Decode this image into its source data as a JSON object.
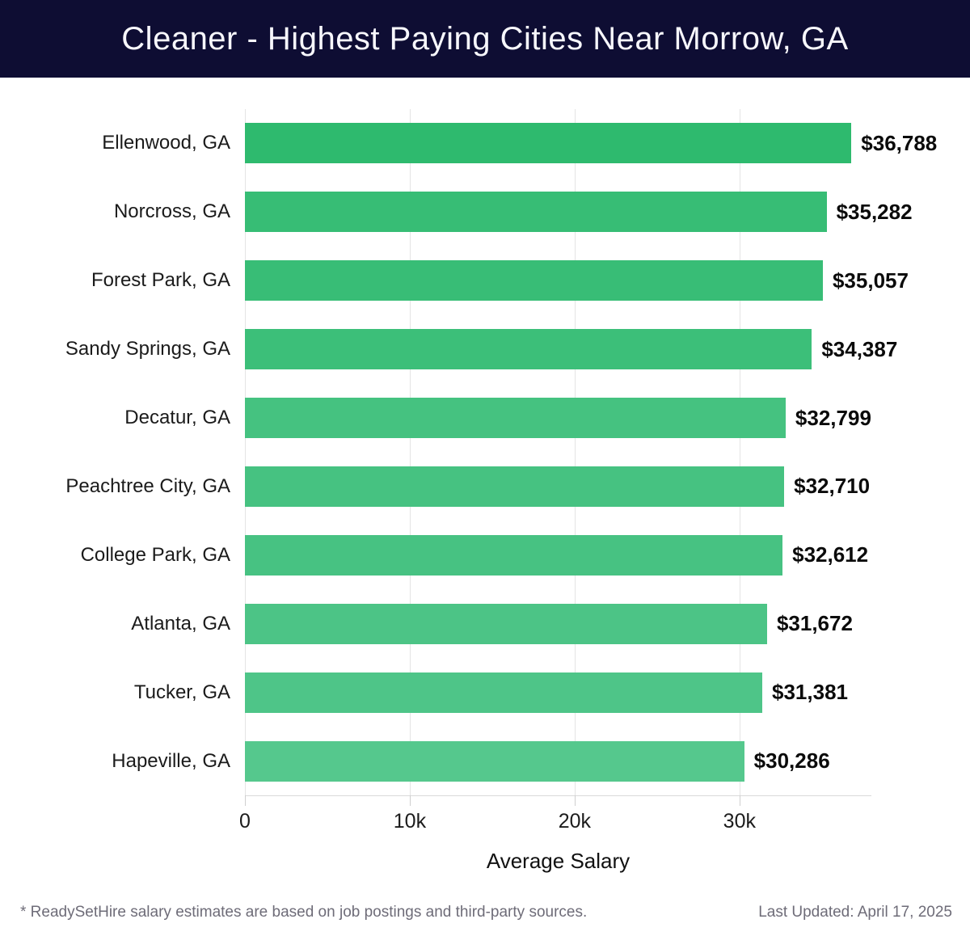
{
  "header": {
    "title": "Cleaner - Highest Paying Cities Near Morrow, GA",
    "background_color": "#0e0d33",
    "text_color": "#f7f7fc"
  },
  "chart_data": {
    "type": "bar",
    "orientation": "horizontal",
    "title": "Cleaner - Highest Paying Cities Near Morrow, GA",
    "xlabel": "Average Salary",
    "ylabel": "",
    "categories": [
      "Ellenwood, GA",
      "Norcross, GA",
      "Forest Park, GA",
      "Sandy Springs, GA",
      "Decatur, GA",
      "Peachtree City, GA",
      "College Park, GA",
      "Atlanta, GA",
      "Tucker, GA",
      "Hapeville, GA"
    ],
    "values": [
      36788,
      35282,
      35057,
      34387,
      32799,
      32710,
      32612,
      31672,
      31381,
      30286
    ],
    "value_labels": [
      "$36,788",
      "$35,282",
      "$35,057",
      "$34,387",
      "$32,799",
      "$32,710",
      "$32,612",
      "$31,672",
      "$31,381",
      "$30,286"
    ],
    "bar_colors": [
      "#2eba6e",
      "#37bd75",
      "#38bd76",
      "#3cbf79",
      "#45c280",
      "#46c281",
      "#47c282",
      "#4cc486",
      "#4ec588",
      "#55c88d"
    ],
    "x_axis": {
      "ticks": [
        0,
        10000,
        20000,
        30000
      ],
      "tick_labels": [
        "0",
        "10k",
        "20k",
        "30k"
      ],
      "max": 38000
    },
    "grid": "vertical-gridlines-on",
    "legend": "none"
  },
  "footer": {
    "disclaimer": "* ReadySetHire salary estimates are based on job postings and third-party sources.",
    "last_updated": "Last Updated: April 17, 2025"
  }
}
